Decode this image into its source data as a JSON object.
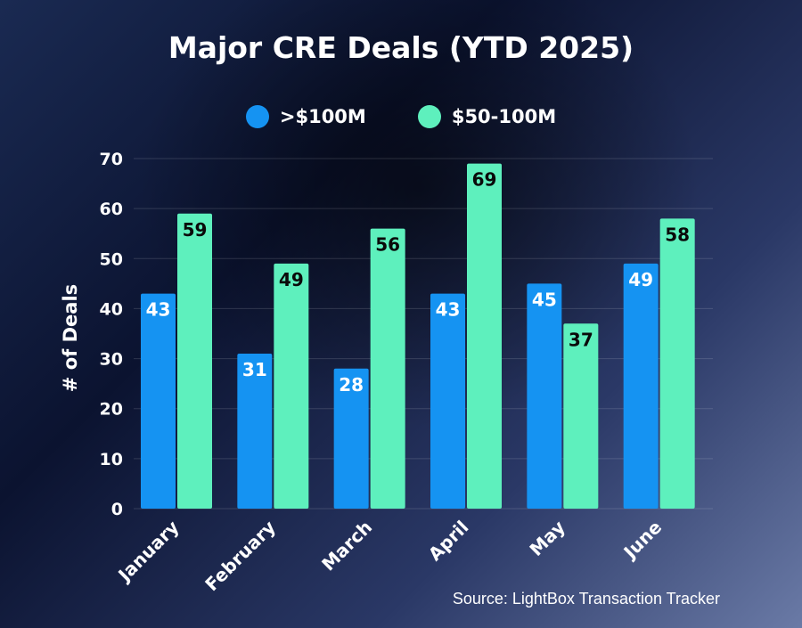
{
  "chart_data": {
    "type": "bar",
    "title": "Major CRE Deals (YTD 2025)",
    "xlabel": "",
    "ylabel": "# of Deals",
    "ylim": [
      0,
      70
    ],
    "yticks": [
      0,
      10,
      20,
      30,
      40,
      50,
      60,
      70
    ],
    "categories": [
      "January",
      "February",
      "March",
      "April",
      "May",
      "June"
    ],
    "series": [
      {
        "name": ">$100M",
        "values": [
          43,
          31,
          28,
          43,
          45,
          49
        ],
        "color": "#1593f2",
        "label_color": "#ffffff"
      },
      {
        "name": "$50-100M",
        "values": [
          59,
          49,
          56,
          69,
          37,
          58
        ],
        "color": "#5ef0bd",
        "label_color": "#0a0a0a"
      }
    ],
    "grid": true,
    "legend_position": "top-center",
    "source": "Source: LightBox Transaction Tracker"
  }
}
